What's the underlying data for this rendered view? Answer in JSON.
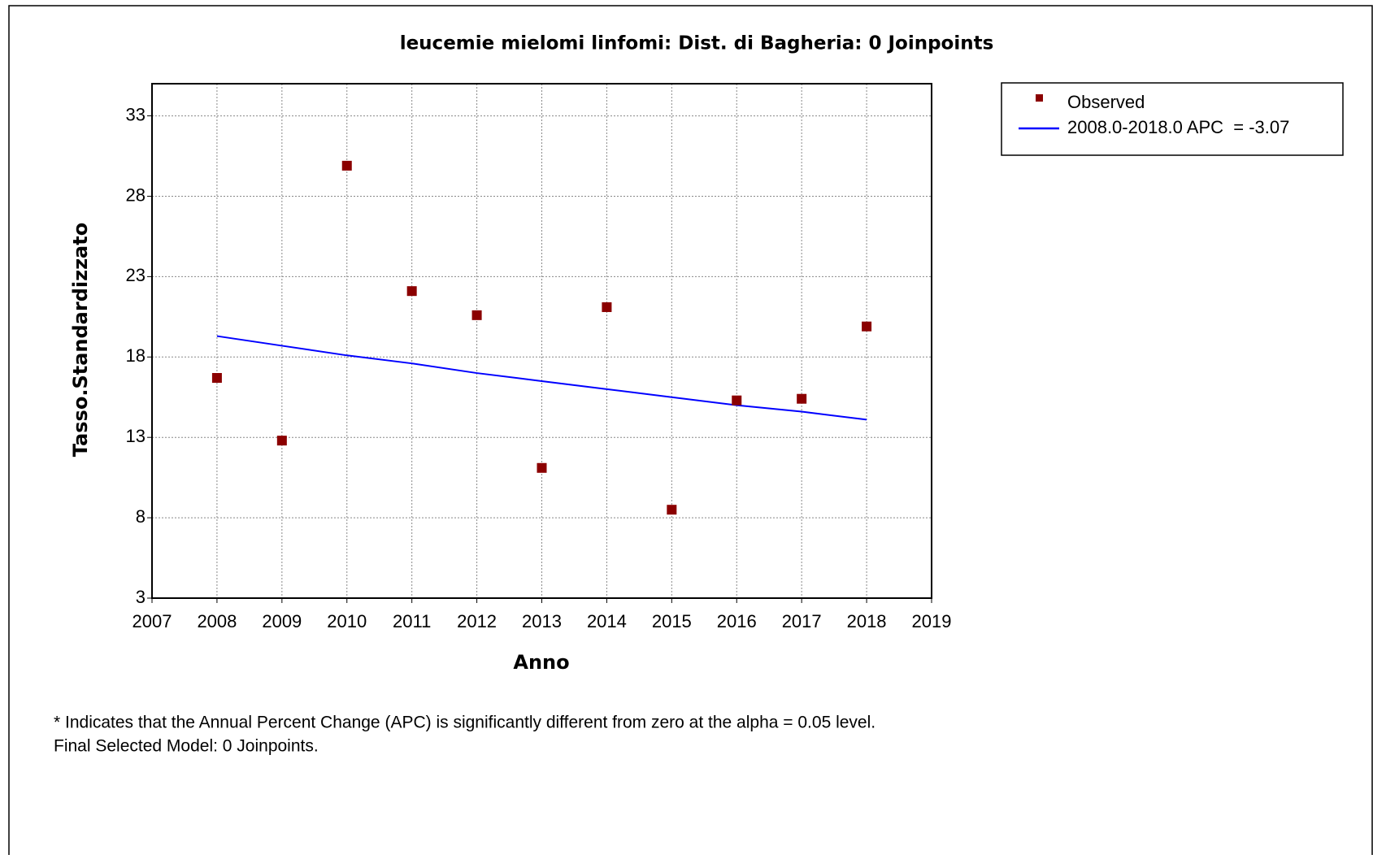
{
  "chart_data": {
    "type": "scatter",
    "title": "leucemie mielomi linfomi: Dist. di Bagheria: 0 Joinpoints",
    "xlabel": "Anno",
    "ylabel": "Tasso.Standardizzato",
    "x": [
      2008,
      2009,
      2010,
      2011,
      2012,
      2013,
      2014,
      2015,
      2016,
      2017,
      2018
    ],
    "series": [
      {
        "name": "Observed",
        "type": "scatter",
        "marker": "square",
        "color": "#8b0000",
        "values": [
          16.7,
          12.8,
          29.9,
          22.1,
          20.6,
          11.1,
          21.1,
          8.5,
          15.3,
          15.4,
          19.9
        ]
      },
      {
        "name": "2008.0-2018.0 APC  = -3.07",
        "type": "line",
        "color": "#0000ff",
        "values": [
          19.3,
          18.7,
          18.1,
          17.6,
          17.0,
          16.5,
          16.0,
          15.5,
          15.0,
          14.6,
          14.1
        ]
      }
    ],
    "xlim": [
      2007,
      2019
    ],
    "ylim": [
      3,
      35
    ],
    "xticks": [
      2007,
      2008,
      2009,
      2010,
      2011,
      2012,
      2013,
      2014,
      2015,
      2016,
      2017,
      2018,
      2019
    ],
    "yticks": [
      3,
      8,
      13,
      18,
      23,
      28,
      33
    ],
    "grid": true,
    "legend": "outside upper right",
    "annotations": [
      "* Indicates that the Annual Percent Change (APC) is significantly different from zero at the alpha = 0.05 level.",
      "Final Selected Model: 0 Joinpoints."
    ]
  }
}
